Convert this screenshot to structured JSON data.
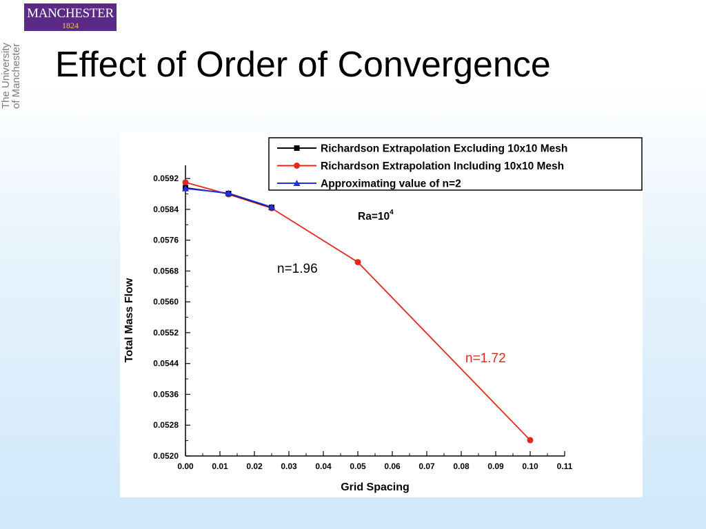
{
  "logo": {
    "name": "MANCHESTER",
    "year": "1824"
  },
  "sidebar_text": [
    "The University",
    "of Manchester"
  ],
  "slide_title": "Effect of Order of Convergence",
  "colors": {
    "red": "#e8251d",
    "blue": "#1f30e6",
    "black": "#000000",
    "logo_purple": "#5b2a86",
    "logo_gold": "#f2c94c"
  },
  "chart_data": {
    "type": "line",
    "xlabel": "Grid Spacing",
    "ylabel": "Total Mass Flow",
    "xlim": [
      0.0,
      0.11
    ],
    "ylim": [
      0.052,
      0.0594
    ],
    "x_ticks": [
      "0.00",
      "0.01",
      "0.02",
      "0.03",
      "0.04",
      "0.05",
      "0.06",
      "0.07",
      "0.08",
      "0.09",
      "0.10",
      "0.11"
    ],
    "y_ticks": [
      "0.0520",
      "0.0528",
      "0.0536",
      "0.0544",
      "0.0552",
      "0.0560",
      "0.0568",
      "0.0576",
      "0.0584",
      "0.0592"
    ],
    "grid": false,
    "legend_position": "top-right",
    "series": [
      {
        "name": "Richardson Extrapolation Excluding 10x10 Mesh",
        "color": "#000000",
        "marker": "square",
        "x": [
          0.0,
          0.0125,
          0.025
        ],
        "y": [
          0.05896,
          0.05881,
          0.05845
        ]
      },
      {
        "name": "Richardson Extrapolation Including 10x10 Mesh",
        "color": "#e8251d",
        "marker": "circle",
        "x": [
          0.0,
          0.0125,
          0.025,
          0.05,
          0.1
        ],
        "y": [
          0.0591,
          0.05879,
          0.05843,
          0.05703,
          0.05241
        ]
      },
      {
        "name": "Approximating value of n=2",
        "color": "#1f30e6",
        "marker": "triangle",
        "x": [
          0.0,
          0.0125,
          0.025
        ],
        "y": [
          0.05894,
          0.05882,
          0.05846
        ]
      }
    ],
    "annotations": {
      "ra": {
        "base": "Ra=10",
        "exp": "4"
      },
      "n1": {
        "text": "n=1.96",
        "color": "#000000"
      },
      "n2": {
        "text": "n=1.72",
        "color": "#e8251d"
      }
    }
  }
}
